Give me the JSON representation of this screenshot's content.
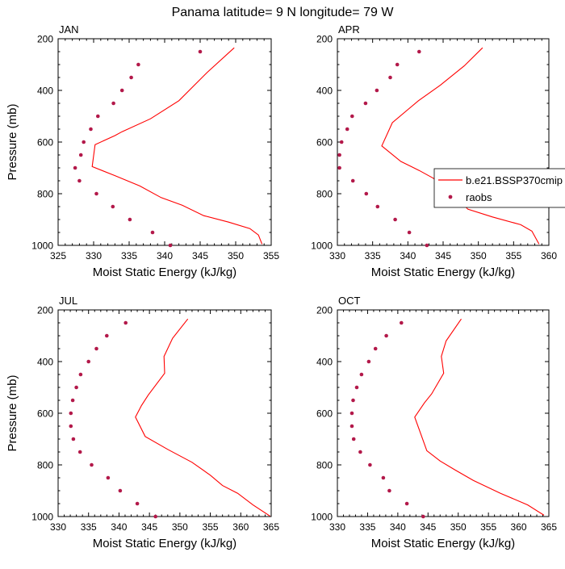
{
  "figure_title": "Panama  latitude= 9 N longitude= 79 W",
  "colors": {
    "model_line": "#ff0000",
    "obs_marker": "#b3194a",
    "axes": "#000000"
  },
  "legend": {
    "model_label": "b.e21.BSSP370cmip",
    "obs_label": "raobs"
  },
  "chart_data": [
    {
      "type": "line",
      "title": "JAN",
      "xlabel": "Moist Static Energy (kJ/kg)",
      "ylabel": "Pressure (mb)",
      "xlim": [
        325,
        355
      ],
      "ylim": [
        1000,
        200
      ],
      "xticks": [
        325,
        330,
        335,
        340,
        345,
        350,
        355
      ],
      "yticks": [
        200,
        400,
        600,
        800,
        1000
      ],
      "series": [
        {
          "name": "b.e21.BSSP370cmip",
          "kind": "line",
          "x": [
            349.8,
            346.0,
            342.0,
            338.0,
            334.0,
            333.0,
            330.2,
            329.8,
            333.0,
            336.5,
            339.5,
            342.5,
            345.5,
            349.0,
            352.0,
            353.2,
            353.7
          ],
          "y": [
            235,
            330,
            440,
            510,
            560,
            575,
            610,
            695,
            730,
            770,
            815,
            845,
            885,
            910,
            935,
            960,
            995
          ]
        },
        {
          "name": "raobs",
          "kind": "scatter",
          "x": [
            345.0,
            336.3,
            335.3,
            334.0,
            332.8,
            330.6,
            329.6,
            328.6,
            328.2,
            327.4,
            328.0,
            330.4,
            332.7,
            335.1,
            338.3,
            340.8
          ],
          "y": [
            250,
            300,
            350,
            400,
            450,
            500,
            550,
            600,
            650,
            700,
            750,
            800,
            850,
            900,
            950,
            1000
          ]
        }
      ]
    },
    {
      "type": "line",
      "title": "APR",
      "xlabel": "Moist Static Energy (kJ/kg)",
      "ylabel": "",
      "xlim": [
        330,
        360
      ],
      "ylim": [
        1000,
        200
      ],
      "xticks": [
        330,
        335,
        340,
        345,
        350,
        355,
        360
      ],
      "yticks": [
        200,
        400,
        600,
        800,
        1000
      ],
      "series": [
        {
          "name": "b.e21.BSSP370cmip",
          "kind": "line",
          "x": [
            350.6,
            348.0,
            344.6,
            341.5,
            337.8,
            336.3,
            339.0,
            341.6,
            343.6,
            345.6,
            347.0,
            348.5,
            352.0,
            356.0,
            357.6,
            358.6
          ],
          "y": [
            235,
            305,
            380,
            440,
            525,
            615,
            675,
            710,
            740,
            780,
            815,
            860,
            890,
            920,
            945,
            995
          ]
        },
        {
          "name": "raobs",
          "kind": "scatter",
          "x": [
            341.6,
            338.5,
            337.5,
            335.6,
            334.0,
            332.1,
            331.4,
            330.6,
            330.3,
            330.3,
            332.2,
            334.1,
            335.7,
            338.2,
            340.2,
            342.7
          ],
          "y": [
            250,
            300,
            350,
            400,
            450,
            500,
            550,
            600,
            650,
            700,
            750,
            800,
            850,
            900,
            950,
            1000
          ]
        }
      ]
    },
    {
      "type": "line",
      "title": "JUL",
      "xlabel": "Moist Static Energy (kJ/kg)",
      "ylabel": "Pressure (mb)",
      "xlim": [
        330,
        365
      ],
      "ylim": [
        1000,
        200
      ],
      "xticks": [
        330,
        335,
        340,
        345,
        350,
        355,
        360,
        365
      ],
      "yticks": [
        200,
        400,
        600,
        800,
        1000
      ],
      "series": [
        {
          "name": "b.e21.BSSP370cmip",
          "kind": "line",
          "x": [
            351.3,
            348.8,
            347.4,
            347.5,
            344.8,
            343.7,
            342.7,
            344.3,
            348.0,
            352.0,
            355.0,
            357.0,
            359.5,
            362.0,
            364.8
          ],
          "y": [
            235,
            310,
            380,
            445,
            530,
            570,
            615,
            690,
            740,
            790,
            840,
            880,
            910,
            955,
            998
          ]
        },
        {
          "name": "raobs",
          "kind": "scatter",
          "x": [
            341.1,
            338.0,
            336.3,
            335.0,
            333.7,
            333.0,
            332.4,
            332.1,
            332.1,
            332.5,
            333.6,
            335.5,
            338.2,
            340.2,
            343.0,
            346.0
          ],
          "y": [
            250,
            300,
            350,
            400,
            450,
            500,
            550,
            600,
            650,
            700,
            750,
            800,
            850,
            900,
            950,
            1000
          ]
        }
      ]
    },
    {
      "type": "line",
      "title": "OCT",
      "xlabel": "Moist Static Energy (kJ/kg)",
      "ylabel": "",
      "xlim": [
        330,
        365
      ],
      "ylim": [
        1000,
        200
      ],
      "xticks": [
        330,
        335,
        340,
        345,
        350,
        355,
        360,
        365
      ],
      "yticks": [
        200,
        400,
        600,
        800,
        1000
      ],
      "series": [
        {
          "name": "b.e21.BSSP370cmip",
          "kind": "line",
          "x": [
            350.5,
            348.0,
            347.2,
            347.6,
            345.6,
            344.4,
            342.8,
            343.8,
            344.8,
            347.0,
            349.5,
            352.5,
            357.0,
            361.5,
            364.2
          ],
          "y": [
            235,
            320,
            380,
            445,
            525,
            560,
            615,
            680,
            745,
            785,
            820,
            860,
            910,
            955,
            995
          ]
        },
        {
          "name": "raobs",
          "kind": "scatter",
          "x": [
            340.6,
            338.1,
            336.3,
            335.2,
            334.0,
            333.2,
            332.6,
            332.4,
            332.4,
            332.7,
            333.8,
            335.4,
            337.6,
            338.6,
            341.5,
            344.2
          ],
          "y": [
            250,
            300,
            350,
            400,
            450,
            500,
            550,
            600,
            650,
            700,
            750,
            800,
            850,
            900,
            950,
            1000
          ]
        }
      ]
    }
  ]
}
